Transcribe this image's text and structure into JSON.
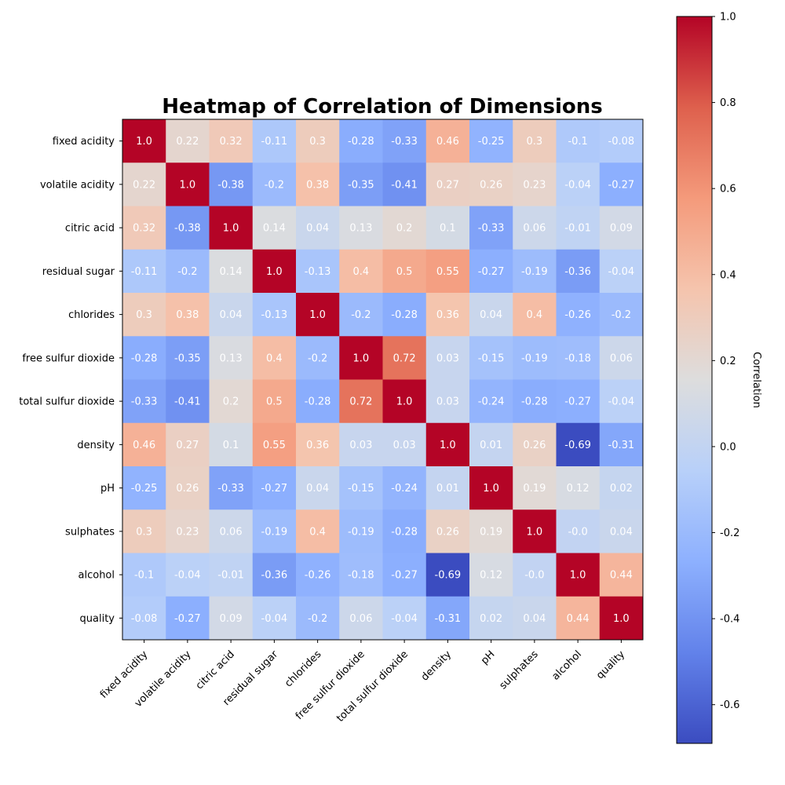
{
  "chart_data": {
    "type": "heatmap",
    "title": "Heatmap of Correlation of Dimensions",
    "labels": [
      "fixed acidity",
      "volatile acidity",
      "citric acid",
      "residual sugar",
      "chlorides",
      "free sulfur dioxide",
      "total sulfur dioxide",
      "density",
      "pH",
      "sulphates",
      "alcohol",
      "quality"
    ],
    "matrix": [
      [
        1.0,
        0.22,
        0.32,
        -0.11,
        0.3,
        -0.28,
        -0.33,
        0.46,
        -0.25,
        0.3,
        -0.1,
        -0.08
      ],
      [
        0.22,
        1.0,
        -0.38,
        -0.2,
        0.38,
        -0.35,
        -0.41,
        0.27,
        0.26,
        0.23,
        -0.04,
        -0.27
      ],
      [
        0.32,
        -0.38,
        1.0,
        0.14,
        0.04,
        0.13,
        0.2,
        0.1,
        -0.33,
        0.06,
        -0.01,
        0.09
      ],
      [
        -0.11,
        -0.2,
        0.14,
        1.0,
        -0.13,
        0.4,
        0.5,
        0.55,
        -0.27,
        -0.19,
        -0.36,
        -0.04
      ],
      [
        0.3,
        0.38,
        0.04,
        -0.13,
        1.0,
        -0.2,
        -0.28,
        0.36,
        0.04,
        0.4,
        -0.26,
        -0.2
      ],
      [
        -0.28,
        -0.35,
        0.13,
        0.4,
        -0.2,
        1.0,
        0.72,
        0.03,
        -0.15,
        -0.19,
        -0.18,
        0.06
      ],
      [
        -0.33,
        -0.41,
        0.2,
        0.5,
        -0.28,
        0.72,
        1.0,
        0.03,
        -0.24,
        -0.28,
        -0.27,
        -0.04
      ],
      [
        0.46,
        0.27,
        0.1,
        0.55,
        0.36,
        0.03,
        0.03,
        1.0,
        0.01,
        0.26,
        -0.69,
        -0.31
      ],
      [
        -0.25,
        0.26,
        -0.33,
        -0.27,
        0.04,
        -0.15,
        -0.24,
        0.01,
        1.0,
        0.19,
        0.12,
        0.02
      ],
      [
        0.3,
        0.23,
        0.06,
        -0.19,
        0.4,
        -0.19,
        -0.28,
        0.26,
        0.19,
        1.0,
        -0.0,
        0.04
      ],
      [
        -0.1,
        -0.04,
        -0.01,
        -0.36,
        -0.26,
        -0.18,
        -0.27,
        -0.69,
        0.12,
        -0.0,
        1.0,
        0.44
      ],
      [
        -0.08,
        -0.27,
        0.09,
        -0.04,
        -0.2,
        0.06,
        -0.04,
        -0.31,
        0.02,
        0.04,
        0.44,
        1.0
      ]
    ],
    "colormap": "coolwarm",
    "vmin": -0.69,
    "vmax": 1.0,
    "colorbar": {
      "label": "Correlation",
      "ticks": [
        "-0.6",
        "-0.4",
        "-0.2",
        "0.0",
        "0.2",
        "0.4",
        "0.6",
        "0.8",
        "1.0"
      ]
    }
  }
}
